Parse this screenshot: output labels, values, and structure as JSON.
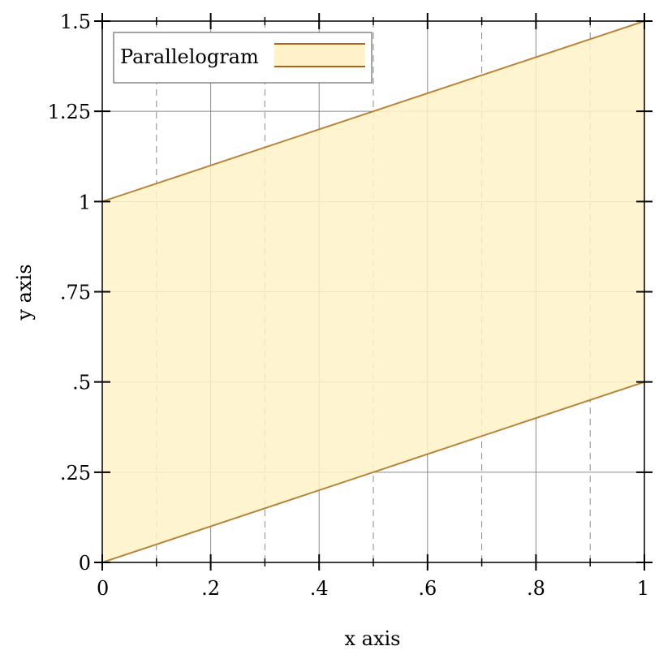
{
  "chart_data": {
    "type": "area",
    "title": "",
    "xlabel": "x axis",
    "ylabel": "y axis",
    "xlim": [
      0,
      1
    ],
    "ylim": [
      0,
      1.5
    ],
    "grid": true,
    "legend_position": "top-left",
    "x_ticks": [
      {
        "value": 0,
        "label": "0"
      },
      {
        "value": 0.2,
        "label": ".2"
      },
      {
        "value": 0.4,
        "label": ".4"
      },
      {
        "value": 0.6,
        "label": ".6"
      },
      {
        "value": 0.8,
        "label": ".8"
      },
      {
        "value": 1,
        "label": "1"
      }
    ],
    "x_minor_ticks": [
      0.1,
      0.3,
      0.5,
      0.7,
      0.9
    ],
    "y_ticks": [
      {
        "value": 0,
        "label": "0"
      },
      {
        "value": 0.25,
        "label": ".25"
      },
      {
        "value": 0.5,
        "label": ".5"
      },
      {
        "value": 0.75,
        "label": ".75"
      },
      {
        "value": 1,
        "label": "1"
      },
      {
        "value": 1.25,
        "label": "1.25"
      },
      {
        "value": 1.5,
        "label": "1.5"
      }
    ],
    "series": [
      {
        "name": "Parallelogram",
        "x": [
          0,
          1
        ],
        "lower": [
          0,
          0.5
        ],
        "upper": [
          1,
          1.5
        ],
        "fill_color": "#fff2c8",
        "line_color": "#b7843a"
      }
    ]
  }
}
